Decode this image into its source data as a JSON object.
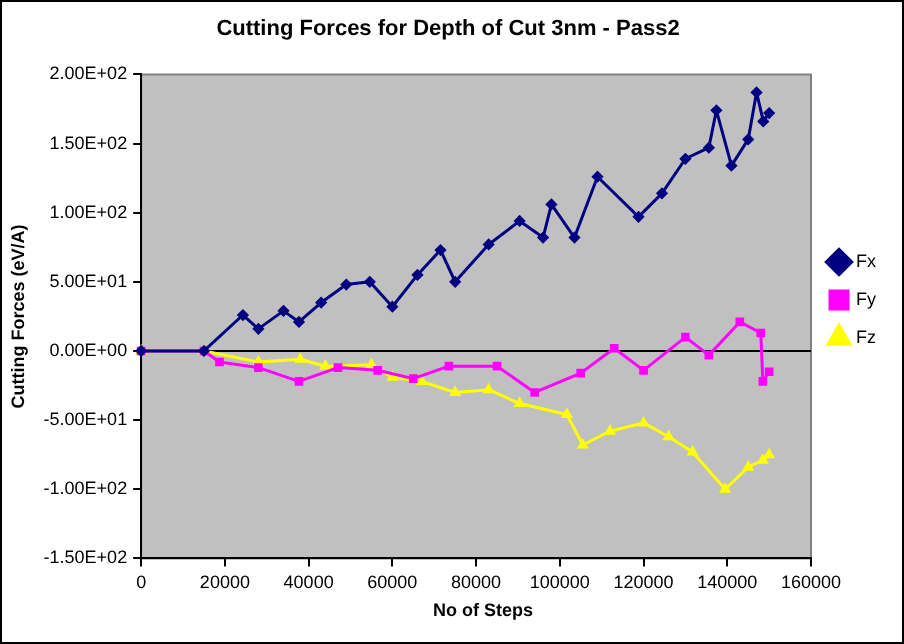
{
  "chart_data": {
    "type": "line",
    "title": "Cutting Forces for Depth of Cut 3nm - Pass2",
    "xlabel": "No of Steps",
    "ylabel": "Cutting Forces (eV/A)",
    "xlim": [
      0,
      160000
    ],
    "xticks": [
      0,
      20000,
      40000,
      60000,
      80000,
      100000,
      120000,
      140000,
      160000
    ],
    "ylim": [
      -150,
      200
    ],
    "yticks": [
      {
        "value": -150,
        "label": "-1.50E+02"
      },
      {
        "value": -100,
        "label": "-1.00E+02"
      },
      {
        "value": -50,
        "label": "-5.00E+01"
      },
      {
        "value": 0,
        "label": "0.00E+00"
      },
      {
        "value": 50,
        "label": "5.00E+01"
      },
      {
        "value": 100,
        "label": "1.00E+02"
      },
      {
        "value": 150,
        "label": "1.50E+02"
      },
      {
        "value": 200,
        "label": "2.00E+02"
      }
    ],
    "grid": false,
    "legend": "right",
    "ref_lines": [
      {
        "axis": "y",
        "value": 0,
        "color": "#000000"
      }
    ],
    "series": [
      {
        "name": "Fx",
        "color": "#000080",
        "marker": "diamond",
        "x": [
          0,
          15000,
          24300,
          28000,
          34000,
          37700,
          43000,
          49000,
          54600,
          60000,
          66000,
          71500,
          75000,
          83000,
          90400,
          96000,
          98000,
          103500,
          109000,
          118800,
          124400,
          130000,
          135600,
          137400,
          141000,
          145000,
          147000,
          148600,
          150000
        ],
        "values": [
          0,
          0,
          26,
          16,
          29,
          21,
          35,
          48,
          50,
          32,
          55,
          73,
          50,
          77,
          94,
          82,
          106,
          82,
          126,
          97,
          114,
          139,
          147,
          174,
          134,
          153,
          187,
          166,
          172
        ]
      },
      {
        "name": "Fy",
        "color": "#ff00ff",
        "marker": "square",
        "x": [
          0,
          15000,
          18700,
          28000,
          37700,
          47000,
          56500,
          65000,
          73500,
          85000,
          94000,
          105000,
          113000,
          120000,
          130000,
          135600,
          143000,
          148000,
          148500,
          150000
        ],
        "values": [
          0,
          0,
          -8,
          -12,
          -22,
          -12,
          -14,
          -20,
          -11,
          -11,
          -30,
          -16,
          2,
          -14,
          10,
          -3,
          21,
          13,
          -22,
          -15
        ]
      },
      {
        "name": "Fz",
        "color": "#ffff00",
        "marker": "triangle",
        "x": [
          0,
          15000,
          28000,
          38000,
          44000,
          55000,
          60000,
          67000,
          75000,
          83000,
          90400,
          101700,
          105500,
          112000,
          120000,
          126000,
          131700,
          139500,
          145000,
          148500,
          150000
        ],
        "values": [
          0,
          0,
          -8,
          -6,
          -11,
          -10,
          -19,
          -22,
          -30,
          -28,
          -38,
          -46,
          -68,
          -58,
          -52,
          -62,
          -73,
          -100,
          -84,
          -79,
          -75
        ]
      }
    ]
  }
}
